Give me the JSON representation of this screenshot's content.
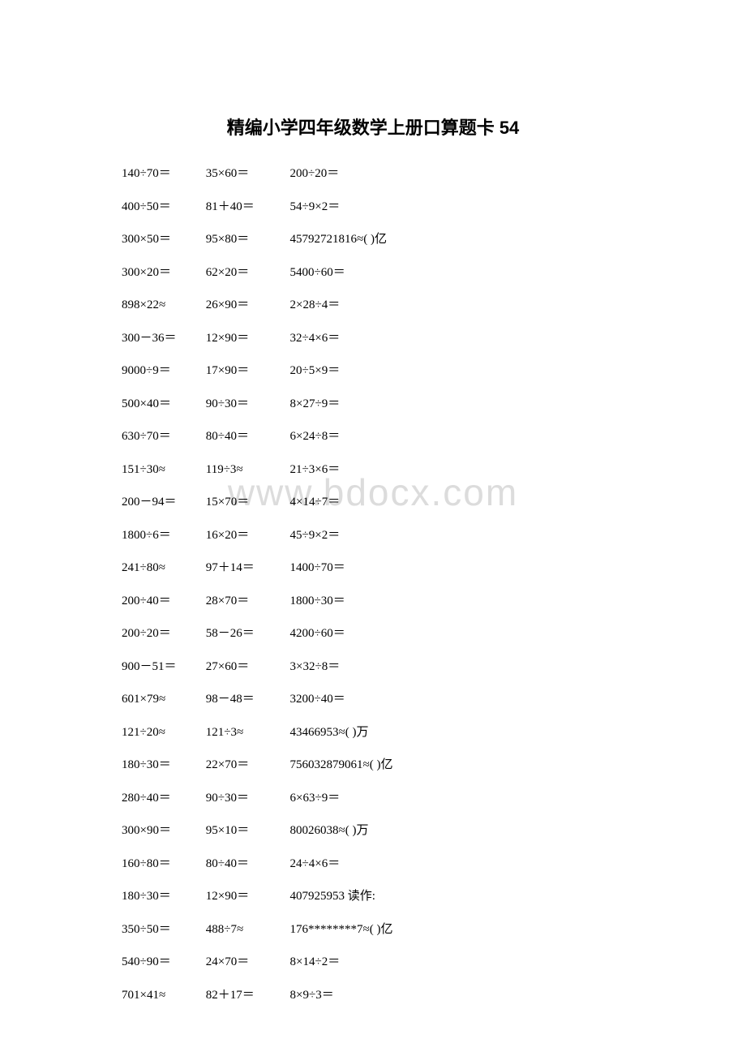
{
  "title": "精编小学四年级数学上册口算题卡 54",
  "watermark": "www.bdocx.com",
  "rows": [
    {
      "c1": "140÷70＝",
      "c2": "35×60＝",
      "c3": "200÷20＝"
    },
    {
      "c1": "400÷50＝",
      "c2": "81＋40＝",
      "c3": "54÷9×2＝"
    },
    {
      "c1": "300×50＝",
      "c2": "95×80＝",
      "c3": "45792721816≈( )亿"
    },
    {
      "c1": "300×20＝",
      "c2": "62×20＝",
      "c3": "5400÷60＝"
    },
    {
      "c1": "898×22≈",
      "c2": "26×90＝",
      "c3": "2×28÷4＝"
    },
    {
      "c1": "300－36＝",
      "c2": "12×90＝",
      "c3": "32÷4×6＝"
    },
    {
      "c1": "9000÷9＝",
      "c2": "17×90＝",
      "c3": "20÷5×9＝"
    },
    {
      "c1": "500×40＝",
      "c2": "90÷30＝",
      "c3": "8×27÷9＝"
    },
    {
      "c1": "630÷70＝",
      "c2": "80÷40＝",
      "c3": "6×24÷8＝"
    },
    {
      "c1": "151÷30≈",
      "c2": "119÷3≈",
      "c3": "21÷3×6＝"
    },
    {
      "c1": "200－94＝",
      "c2": "15×70＝",
      "c3": "4×14÷7＝"
    },
    {
      "c1": "1800÷6＝",
      "c2": "16×20＝",
      "c3": "45÷9×2＝"
    },
    {
      "c1": "241÷80≈",
      "c2": "97＋14＝",
      "c3": "1400÷70＝"
    },
    {
      "c1": "200÷40＝",
      "c2": "28×70＝",
      "c3": "1800÷30＝"
    },
    {
      "c1": "200÷20＝",
      "c2": "58－26＝",
      "c3": "4200÷60＝"
    },
    {
      "c1": "900－51＝",
      "c2": "27×60＝",
      "c3": "3×32÷8＝"
    },
    {
      "c1": "601×79≈",
      "c2": "98－48＝",
      "c3": "3200÷40＝"
    },
    {
      "c1": "121÷20≈",
      "c2": "121÷3≈",
      "c3": "43466953≈( )万"
    },
    {
      "c1": "180÷30＝",
      "c2": "22×70＝",
      "c3": "756032879061≈( )亿"
    },
    {
      "c1": "280÷40＝",
      "c2": "90÷30＝",
      "c3": "6×63÷9＝"
    },
    {
      "c1": "300×90＝",
      "c2": "95×10＝",
      "c3": "80026038≈( )万"
    },
    {
      "c1": "160÷80＝",
      "c2": "80÷40＝",
      "c3": "24÷4×6＝"
    },
    {
      "c1": "180÷30＝",
      "c2": "12×90＝",
      "c3": "407925953 读作:"
    },
    {
      "c1": "350÷50＝",
      "c2": "488÷7≈",
      "c3": "176********7≈( )亿"
    },
    {
      "c1": "540÷90＝",
      "c2": "24×70＝",
      "c3": "8×14÷2＝"
    },
    {
      "c1": "701×41≈",
      "c2": "82＋17＝",
      "c3": "8×9÷3＝"
    }
  ]
}
